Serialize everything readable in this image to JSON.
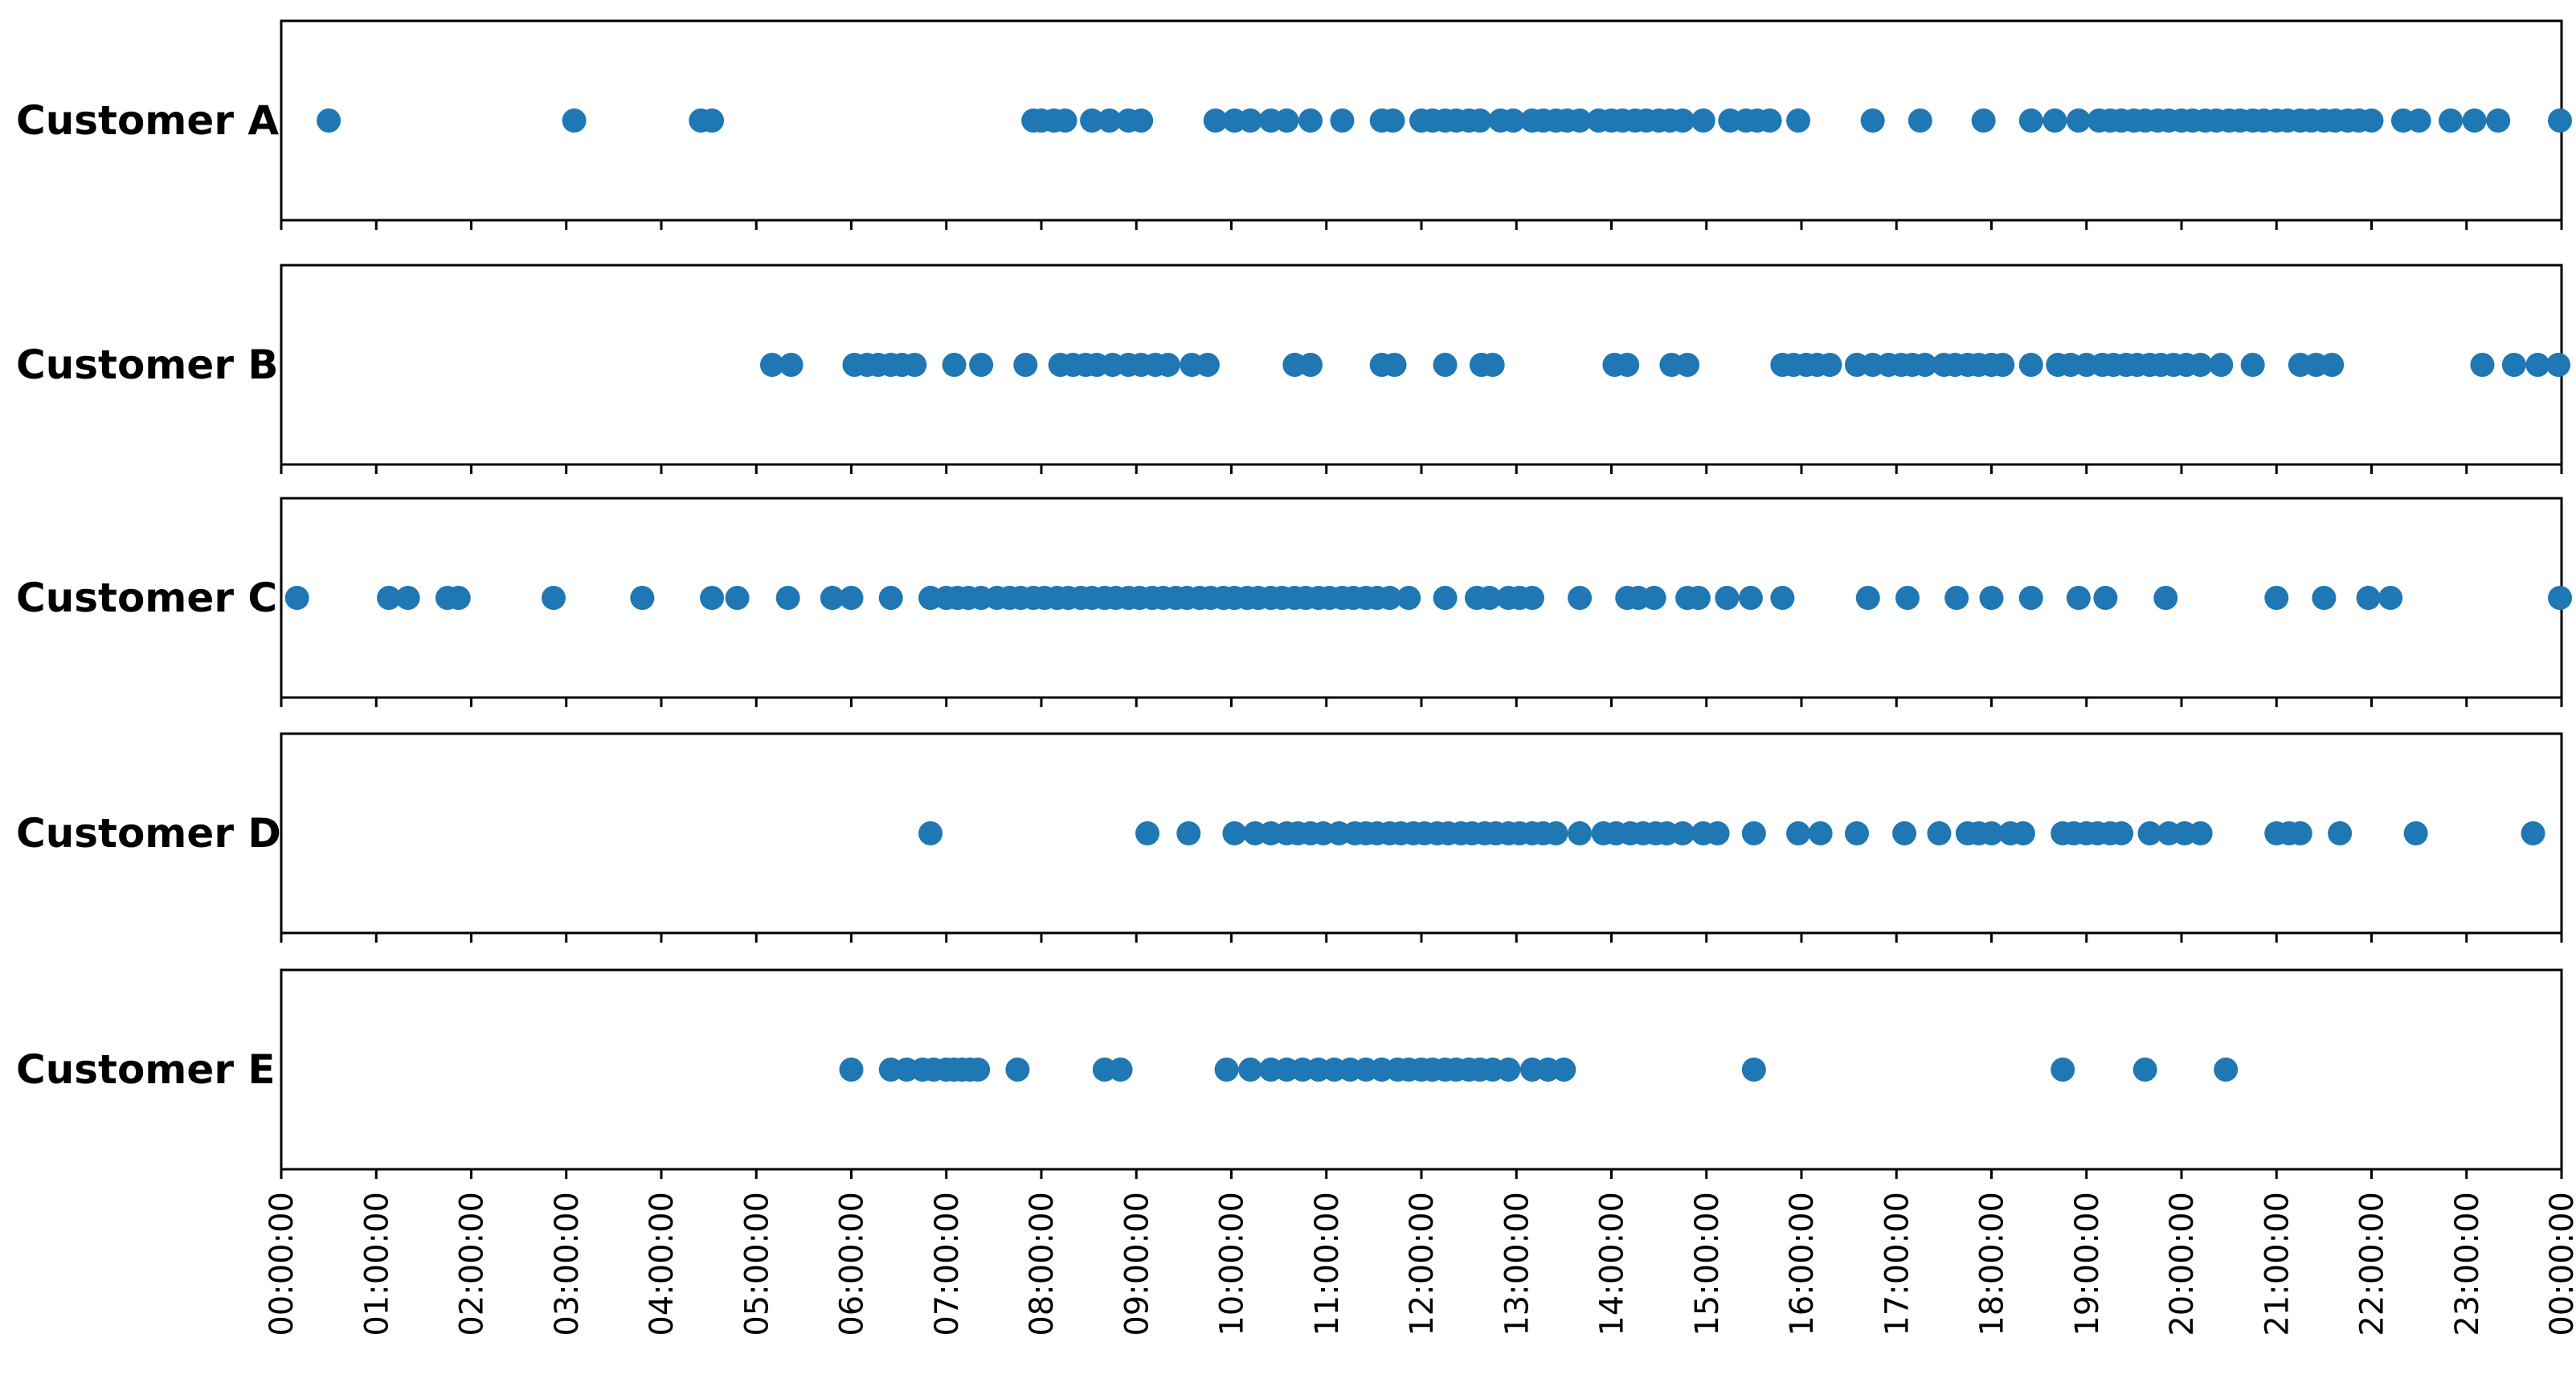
{
  "chart_data": {
    "type": "scatter",
    "x_axis": {
      "kind": "time-of-day",
      "range": [
        "00:00:00",
        "24:00:00"
      ],
      "tick_labels": [
        "00:00:00",
        "01:00:00",
        "02:00:00",
        "03:00:00",
        "04:00:00",
        "05:00:00",
        "06:00:00",
        "07:00:00",
        "08:00:00",
        "09:00:00",
        "10:00:00",
        "11:00:00",
        "12:00:00",
        "13:00:00",
        "14:00:00",
        "15:00:00",
        "16:00:00",
        "17:00:00",
        "18:00:00",
        "19:00:00",
        "20:00:00",
        "21:00:00",
        "22:00:00",
        "23:00:00",
        "00:00:00"
      ],
      "tick_labels_rotation": "vertical",
      "shared": true
    },
    "marker_color": "#1f77b4",
    "grid": false,
    "legend": "none",
    "series": [
      {
        "name": "Customer A",
        "x": [
          "00:30",
          "03:05",
          "04:25",
          "04:32",
          "07:55",
          "08:00",
          "08:08",
          "08:15",
          "08:32",
          "08:43",
          "08:55",
          "09:03",
          "09:50",
          "10:02",
          "10:12",
          "10:25",
          "10:35",
          "10:50",
          "11:10",
          "11:35",
          "11:42",
          "12:00",
          "12:07",
          "12:15",
          "12:22",
          "12:30",
          "12:37",
          "12:50",
          "12:58",
          "13:10",
          "13:17",
          "13:25",
          "13:32",
          "13:40",
          "13:52",
          "14:00",
          "14:07",
          "14:15",
          "14:22",
          "14:30",
          "14:37",
          "14:45",
          "14:58",
          "15:15",
          "15:25",
          "15:32",
          "15:40",
          "15:58",
          "16:45",
          "17:15",
          "17:55",
          "18:25",
          "18:40",
          "18:55",
          "19:08",
          "19:15",
          "19:22",
          "19:30",
          "19:37",
          "19:45",
          "19:52",
          "20:00",
          "20:07",
          "20:15",
          "20:22",
          "20:30",
          "20:37",
          "20:45",
          "20:52",
          "21:00",
          "21:07",
          "21:15",
          "21:22",
          "21:30",
          "21:37",
          "21:45",
          "21:52",
          "22:00",
          "22:20",
          "22:30",
          "22:50",
          "23:05",
          "23:20",
          "23:59"
        ]
      },
      {
        "name": "Customer B",
        "x": [
          "05:10",
          "05:22",
          "06:02",
          "06:10",
          "06:17",
          "06:25",
          "06:32",
          "06:40",
          "07:05",
          "07:22",
          "07:50",
          "08:12",
          "08:20",
          "08:28",
          "08:35",
          "08:45",
          "08:55",
          "09:03",
          "09:12",
          "09:20",
          "09:35",
          "09:45",
          "10:40",
          "10:50",
          "11:35",
          "11:43",
          "12:15",
          "12:38",
          "12:45",
          "14:02",
          "14:10",
          "14:38",
          "14:48",
          "15:48",
          "15:55",
          "16:03",
          "16:10",
          "16:18",
          "16:35",
          "16:45",
          "16:55",
          "17:03",
          "17:10",
          "17:18",
          "17:30",
          "17:37",
          "17:45",
          "17:52",
          "18:00",
          "18:07",
          "18:25",
          "18:42",
          "18:50",
          "19:00",
          "19:10",
          "19:17",
          "19:25",
          "19:32",
          "19:40",
          "19:47",
          "19:55",
          "20:03",
          "20:12",
          "20:25",
          "20:45",
          "21:15",
          "21:25",
          "21:35",
          "23:10",
          "23:30",
          "23:45",
          "23:58"
        ]
      },
      {
        "name": "Customer C",
        "x": [
          "00:10",
          "01:08",
          "01:20",
          "01:45",
          "01:52",
          "02:52",
          "03:48",
          "04:32",
          "04:48",
          "05:20",
          "05:48",
          "06:00",
          "06:25",
          "06:50",
          "07:00",
          "07:07",
          "07:14",
          "07:22",
          "07:32",
          "07:40",
          "07:47",
          "07:55",
          "08:02",
          "08:10",
          "08:17",
          "08:25",
          "08:32",
          "08:40",
          "08:47",
          "08:55",
          "09:02",
          "09:10",
          "09:17",
          "09:25",
          "09:32",
          "09:40",
          "09:47",
          "09:55",
          "10:02",
          "10:10",
          "10:17",
          "10:25",
          "10:32",
          "10:40",
          "10:47",
          "10:55",
          "11:02",
          "11:10",
          "11:17",
          "11:25",
          "11:32",
          "11:40",
          "11:52",
          "12:15",
          "12:35",
          "12:43",
          "12:55",
          "13:02",
          "13:10",
          "13:40",
          "14:10",
          "14:17",
          "14:27",
          "14:48",
          "14:55",
          "15:13",
          "15:28",
          "15:48",
          "16:42",
          "17:07",
          "17:38",
          "18:00",
          "18:25",
          "18:55",
          "19:12",
          "19:50",
          "21:00",
          "21:30",
          "21:58",
          "22:12",
          "23:59"
        ]
      },
      {
        "name": "Customer D",
        "x": [
          "06:50",
          "09:07",
          "09:33",
          "10:02",
          "10:15",
          "10:25",
          "10:35",
          "10:42",
          "10:50",
          "10:58",
          "11:08",
          "11:18",
          "11:25",
          "11:32",
          "11:40",
          "11:47",
          "11:55",
          "12:02",
          "12:10",
          "12:17",
          "12:25",
          "12:32",
          "12:40",
          "12:47",
          "12:55",
          "13:02",
          "13:10",
          "13:17",
          "13:25",
          "13:40",
          "13:55",
          "14:03",
          "14:12",
          "14:20",
          "14:28",
          "14:35",
          "14:45",
          "14:58",
          "15:07",
          "15:30",
          "15:58",
          "16:12",
          "16:35",
          "17:05",
          "17:27",
          "17:45",
          "17:52",
          "18:00",
          "18:12",
          "18:20",
          "18:45",
          "18:52",
          "19:00",
          "19:07",
          "19:15",
          "19:22",
          "19:40",
          "19:52",
          "20:02",
          "20:12",
          "21:00",
          "21:08",
          "21:15",
          "21:40",
          "22:28",
          "23:42"
        ]
      },
      {
        "name": "Customer E",
        "x": [
          "06:00",
          "06:25",
          "06:35",
          "06:45",
          "06:52",
          "07:00",
          "07:05",
          "07:10",
          "07:15",
          "07:20",
          "07:45",
          "08:40",
          "08:50",
          "09:57",
          "10:12",
          "10:25",
          "10:35",
          "10:45",
          "10:55",
          "11:05",
          "11:15",
          "11:25",
          "11:35",
          "11:45",
          "11:52",
          "12:00",
          "12:07",
          "12:15",
          "12:22",
          "12:30",
          "12:37",
          "12:45",
          "12:55",
          "13:10",
          "13:20",
          "13:30",
          "15:30",
          "18:45",
          "19:37",
          "20:28"
        ]
      }
    ]
  }
}
